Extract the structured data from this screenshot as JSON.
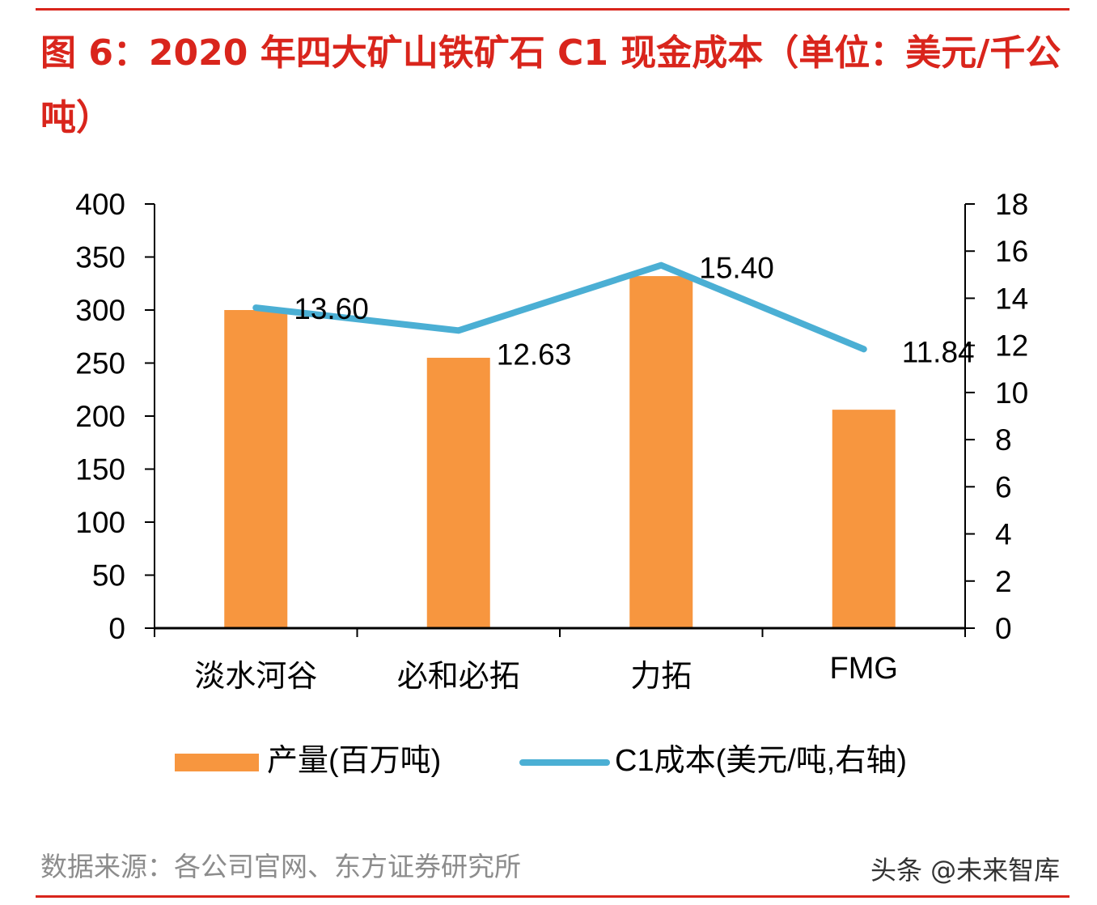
{
  "title": "图 6：2020 年四大矿山铁矿石 C1 现金成本（单位：美元/千公吨）",
  "source": "数据来源：各公司官网、东方证券研究所",
  "watermark": "头条 @未来智库",
  "chart_data": {
    "type": "bar+line",
    "categories": [
      "淡水河谷",
      "必和必拓",
      "力拓",
      "FMG"
    ],
    "series": [
      {
        "name": "产量(百万吨)",
        "type": "bar",
        "axis": "left",
        "color": "#f7963f",
        "values": [
          300,
          255,
          332,
          206
        ]
      },
      {
        "name": "C1成本(美元/吨,右轴)",
        "type": "line",
        "axis": "right",
        "color": "#4bafd4",
        "values": [
          13.6,
          12.63,
          15.4,
          11.84
        ],
        "labels": [
          "13.60",
          "12.63",
          "15.40",
          "11.84"
        ]
      }
    ],
    "left_axis": {
      "min": 0,
      "max": 400,
      "step": 50
    },
    "right_axis": {
      "min": 0,
      "max": 18,
      "step": 2
    },
    "legend": "bottom",
    "grid": false
  }
}
